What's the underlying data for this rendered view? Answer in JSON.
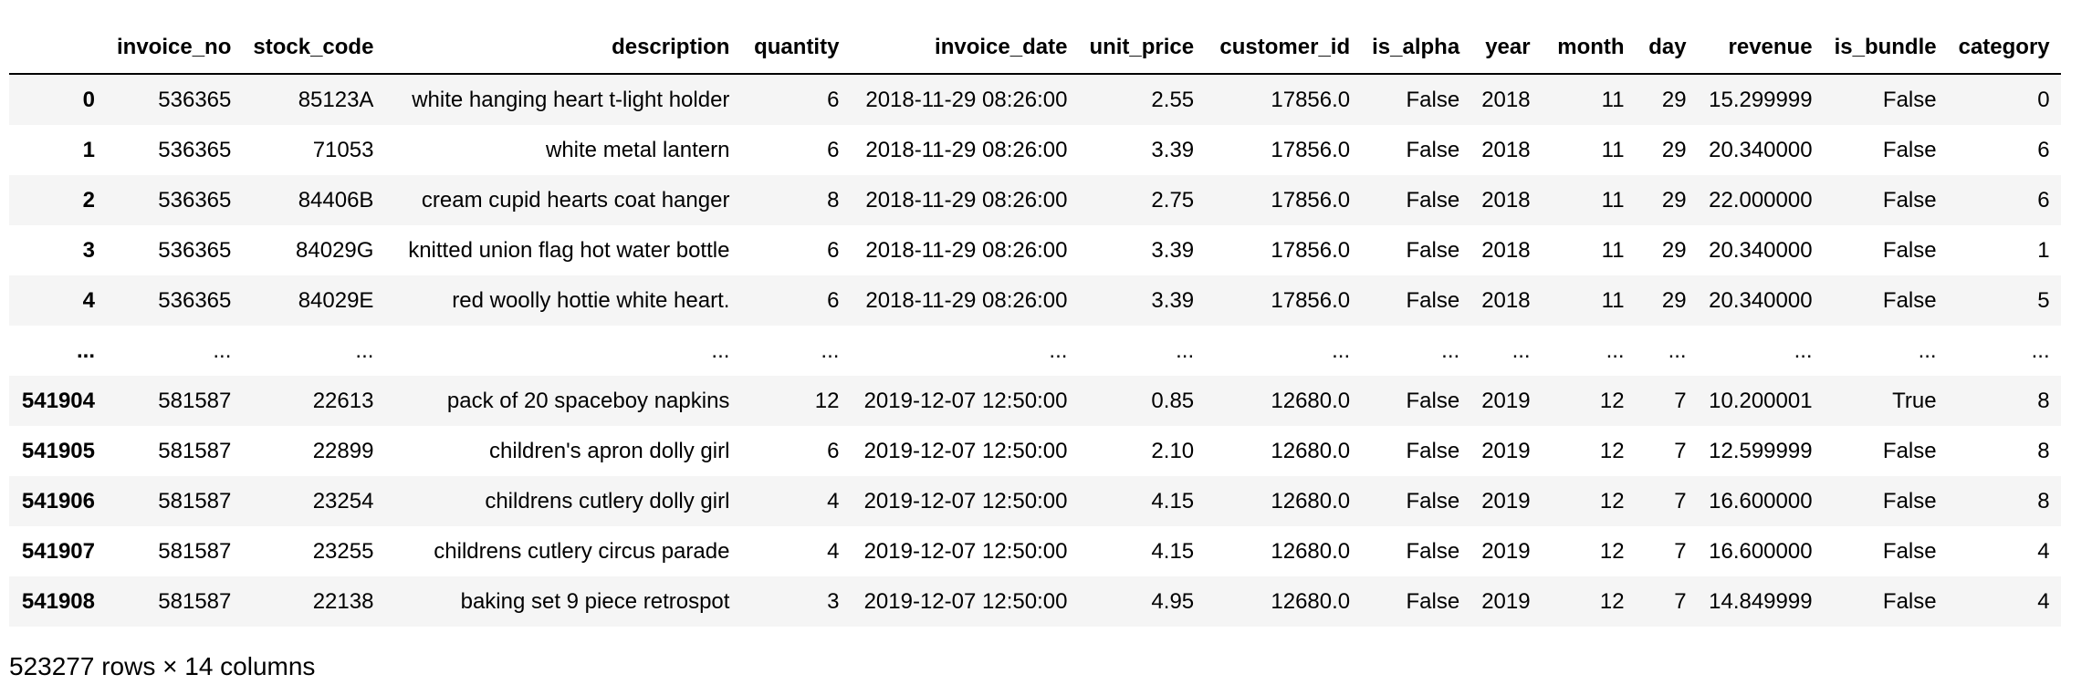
{
  "table": {
    "index_header": "",
    "columns": [
      "invoice_no",
      "stock_code",
      "description",
      "quantity",
      "invoice_date",
      "unit_price",
      "customer_id",
      "is_alpha",
      "year",
      "month",
      "day",
      "revenue",
      "is_bundle",
      "category"
    ],
    "rows": [
      {
        "index": "0",
        "cells": [
          "536365",
          "85123A",
          "white hanging heart t-light holder",
          "6",
          "2018-11-29 08:26:00",
          "2.55",
          "17856.0",
          "False",
          "2018",
          "11",
          "29",
          "15.299999",
          "False",
          "0"
        ]
      },
      {
        "index": "1",
        "cells": [
          "536365",
          "71053",
          "white metal lantern",
          "6",
          "2018-11-29 08:26:00",
          "3.39",
          "17856.0",
          "False",
          "2018",
          "11",
          "29",
          "20.340000",
          "False",
          "6"
        ]
      },
      {
        "index": "2",
        "cells": [
          "536365",
          "84406B",
          "cream cupid hearts coat hanger",
          "8",
          "2018-11-29 08:26:00",
          "2.75",
          "17856.0",
          "False",
          "2018",
          "11",
          "29",
          "22.000000",
          "False",
          "6"
        ]
      },
      {
        "index": "3",
        "cells": [
          "536365",
          "84029G",
          "knitted union flag hot water bottle",
          "6",
          "2018-11-29 08:26:00",
          "3.39",
          "17856.0",
          "False",
          "2018",
          "11",
          "29",
          "20.340000",
          "False",
          "1"
        ]
      },
      {
        "index": "4",
        "cells": [
          "536365",
          "84029E",
          "red woolly hottie white heart.",
          "6",
          "2018-11-29 08:26:00",
          "3.39",
          "17856.0",
          "False",
          "2018",
          "11",
          "29",
          "20.340000",
          "False",
          "5"
        ]
      },
      {
        "index": "...",
        "cells": [
          "...",
          "...",
          "...",
          "...",
          "...",
          "...",
          "...",
          "...",
          "...",
          "...",
          "...",
          "...",
          "...",
          "..."
        ]
      },
      {
        "index": "541904",
        "cells": [
          "581587",
          "22613",
          "pack of 20 spaceboy napkins",
          "12",
          "2019-12-07 12:50:00",
          "0.85",
          "12680.0",
          "False",
          "2019",
          "12",
          "7",
          "10.200001",
          "True",
          "8"
        ]
      },
      {
        "index": "541905",
        "cells": [
          "581587",
          "22899",
          "children's apron dolly girl",
          "6",
          "2019-12-07 12:50:00",
          "2.10",
          "12680.0",
          "False",
          "2019",
          "12",
          "7",
          "12.599999",
          "False",
          "8"
        ]
      },
      {
        "index": "541906",
        "cells": [
          "581587",
          "23254",
          "childrens cutlery dolly girl",
          "4",
          "2019-12-07 12:50:00",
          "4.15",
          "12680.0",
          "False",
          "2019",
          "12",
          "7",
          "16.600000",
          "False",
          "8"
        ]
      },
      {
        "index": "541907",
        "cells": [
          "581587",
          "23255",
          "childrens cutlery circus parade",
          "4",
          "2019-12-07 12:50:00",
          "4.15",
          "12680.0",
          "False",
          "2019",
          "12",
          "7",
          "16.600000",
          "False",
          "4"
        ]
      },
      {
        "index": "541908",
        "cells": [
          "581587",
          "22138",
          "baking set 9 piece retrospot",
          "3",
          "2019-12-07 12:50:00",
          "4.95",
          "12680.0",
          "False",
          "2019",
          "12",
          "7",
          "14.849999",
          "False",
          "4"
        ]
      }
    ]
  },
  "footer": {
    "shape_text": "523277 rows × 14 columns"
  }
}
